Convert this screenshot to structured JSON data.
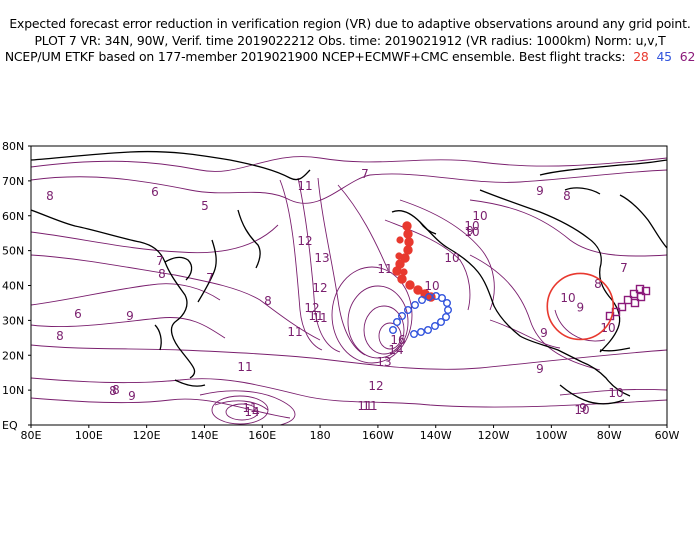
{
  "title": {
    "line1": "Expected forecast error reduction in verification region (VR) due to adaptive observations around any grid point.",
    "line2": "PLOT 7 VR: 34N, 90W, Verif. time 2019022212 Obs. time: 2019021912 (VR radius: 1000km) Norm: u,v,T",
    "line3_prefix": "NCEP/UM ETKF based on 177-member 2019021900 NCEP+ECMWF+CMC ensemble. Best flight tracks:",
    "tracks": [
      {
        "label": "28",
        "color": "#e8392f"
      },
      {
        "label": "45",
        "color": "#3355dd"
      },
      {
        "label": "62",
        "color": "#8b1a7a"
      }
    ]
  },
  "map": {
    "lat_ticks": [
      "80N",
      "70N",
      "60N",
      "50N",
      "40N",
      "30N",
      "20N",
      "10N",
      "EQ"
    ],
    "lon_ticks": [
      "80E",
      "100E",
      "120E",
      "140E",
      "160E",
      "180",
      "160W",
      "140W",
      "120W",
      "100W",
      "80W",
      "60W"
    ],
    "contour_color": "#7a1f6e",
    "coast_color": "#000000",
    "contour_labels": [
      "8",
      "6",
      "5",
      "7",
      "11",
      "7",
      "6",
      "8",
      "9",
      "10",
      "9",
      "8",
      "7",
      "10",
      "12",
      "11",
      "12",
      "13",
      "12",
      "11",
      "10",
      "9",
      "9",
      "10",
      "10",
      "8",
      "9",
      "8",
      "9",
      "8",
      "8",
      "13",
      "14",
      "16",
      "12",
      "11",
      "11",
      "11",
      "9",
      "10",
      "10",
      "10",
      "10",
      "11",
      "14",
      "11",
      "11",
      "7",
      "8"
    ],
    "vr_circle": {
      "lat": 34,
      "lon": -90,
      "label": "9",
      "color": "#e8392f"
    }
  }
}
